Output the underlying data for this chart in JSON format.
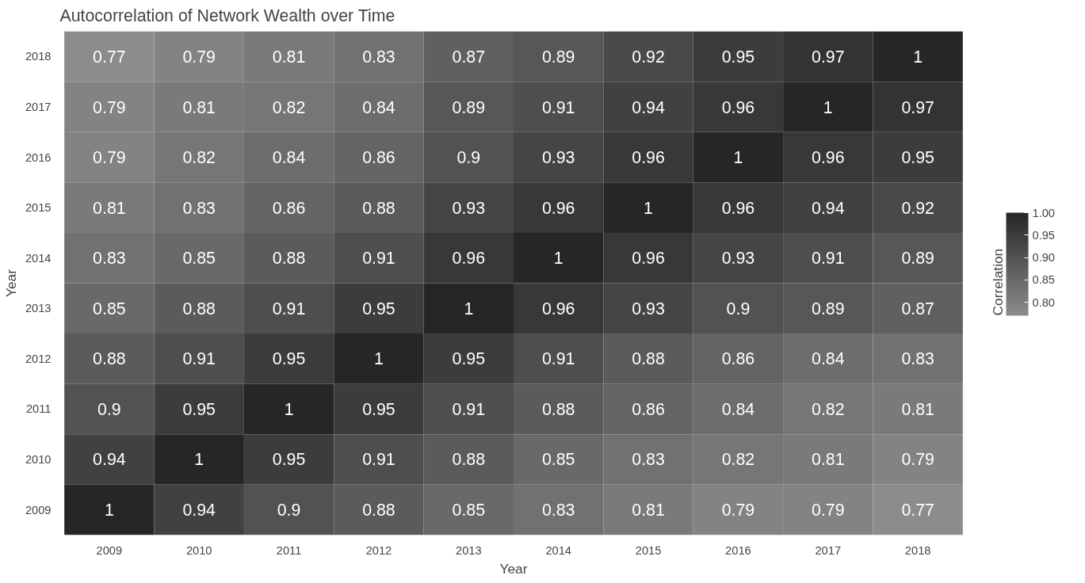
{
  "chart_data": {
    "type": "heatmap",
    "title": "Autocorrelation of Network Wealth over Time",
    "xlabel": "Year",
    "ylabel": "Year",
    "clabel": "Correlation",
    "categories": [
      "2009",
      "2010",
      "2011",
      "2012",
      "2013",
      "2014",
      "2015",
      "2016",
      "2017",
      "2018"
    ],
    "y_categories": [
      "2018",
      "2017",
      "2016",
      "2015",
      "2014",
      "2013",
      "2012",
      "2011",
      "2010",
      "2009"
    ],
    "cells": [
      [
        0.77,
        0.79,
        0.81,
        0.83,
        0.87,
        0.89,
        0.92,
        0.95,
        0.97,
        1
      ],
      [
        0.79,
        0.81,
        0.82,
        0.84,
        0.89,
        0.91,
        0.94,
        0.96,
        1,
        0.97
      ],
      [
        0.79,
        0.82,
        0.84,
        0.86,
        0.9,
        0.93,
        0.96,
        1,
        0.96,
        0.95
      ],
      [
        0.81,
        0.83,
        0.86,
        0.88,
        0.93,
        0.96,
        1,
        0.96,
        0.94,
        0.92
      ],
      [
        0.83,
        0.85,
        0.88,
        0.91,
        0.96,
        1,
        0.96,
        0.93,
        0.91,
        0.89
      ],
      [
        0.85,
        0.88,
        0.91,
        0.95,
        1,
        0.96,
        0.93,
        0.9,
        0.89,
        0.87
      ],
      [
        0.88,
        0.91,
        0.95,
        1,
        0.95,
        0.91,
        0.88,
        0.86,
        0.84,
        0.83
      ],
      [
        0.9,
        0.95,
        1,
        0.95,
        0.91,
        0.88,
        0.86,
        0.84,
        0.82,
        0.81
      ],
      [
        0.94,
        1,
        0.95,
        0.91,
        0.88,
        0.85,
        0.83,
        0.82,
        0.81,
        0.79
      ],
      [
        1,
        0.94,
        0.9,
        0.88,
        0.85,
        0.83,
        0.81,
        0.79,
        0.79,
        0.77
      ]
    ],
    "colors": [
      "#8c8c8c",
      "#262626"
    ],
    "clim": [
      0.77,
      1
    ],
    "cticks": [
      {
        "value": 0.8,
        "label": "0.80"
      },
      {
        "value": 0.85,
        "label": "0.85"
      },
      {
        "value": 0.9,
        "label": "0.90"
      },
      {
        "value": 0.95,
        "label": "0.95"
      },
      {
        "value": 1,
        "label": "1.00"
      }
    ],
    "data_labels": true
  }
}
